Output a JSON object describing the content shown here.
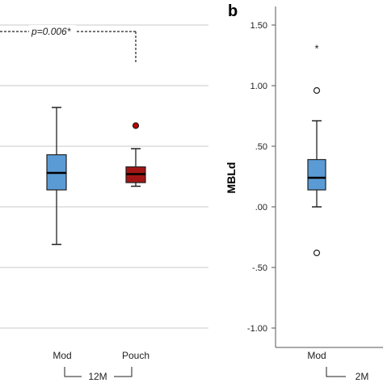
{
  "chart_data": [
    {
      "panel": "",
      "type": "box",
      "ylabel": "",
      "categories": [
        "Mod",
        "Pouch"
      ],
      "group_label": "12M",
      "annotation": "p=0.006*",
      "colors": {
        "Mod": "#5b9bd5",
        "Pouch": "#a31515",
        "outlier_fill": "#c00000"
      },
      "boxes": [
        {
          "name": "Mod",
          "whisker_low": -0.31,
          "q1": 0.14,
          "median": 0.28,
          "q3": 0.43,
          "whisker_high": 0.82,
          "outliers": []
        },
        {
          "name": "Pouch",
          "whisker_low": 0.17,
          "q1": 0.2,
          "median": 0.27,
          "q3": 0.33,
          "whisker_high": 0.48,
          "outliers": [
            0.67
          ]
        }
      ],
      "ylim": [
        -1.1,
        1.6
      ],
      "gridlines": [
        -1.0,
        -0.5,
        0.0,
        0.5,
        1.0,
        1.5
      ]
    },
    {
      "panel": "b",
      "type": "box",
      "ylabel": "MBLd",
      "categories": [
        "Mod"
      ],
      "group_label": "2M",
      "yticks": [
        1.5,
        1.0,
        0.5,
        0.0,
        -0.5,
        -1.0
      ],
      "ytick_labels": [
        "1.50",
        "1.00",
        ".50",
        ".00",
        "-.50",
        "-1.00"
      ],
      "colors": {
        "Mod": "#5b9bd5"
      },
      "boxes": [
        {
          "name": "Mod",
          "whisker_low": 0.0,
          "q1": 0.14,
          "median": 0.24,
          "q3": 0.39,
          "whisker_high": 0.71,
          "outliers": [
            0.96,
            -0.38
          ],
          "extremes": [
            1.31
          ]
        }
      ],
      "ylim": [
        -1.1,
        1.6
      ],
      "grid": false
    }
  ]
}
